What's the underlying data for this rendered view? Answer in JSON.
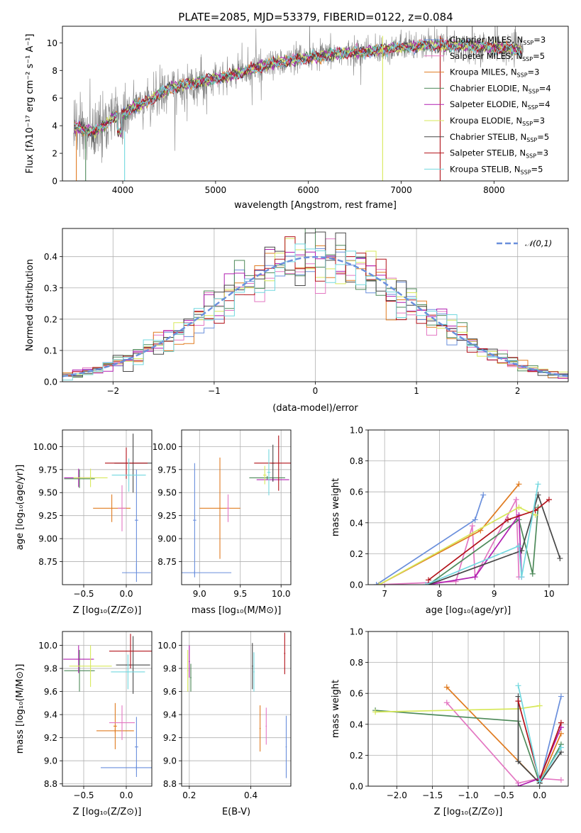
{
  "page": {
    "title": "PLATE=2085, MJD=53379, FIBERID=0122, z=0.084"
  },
  "palette": {
    "chabrier_miles": "#6a8fdc",
    "salpeter_miles": "#e377c2",
    "kroupa_miles": "#e07b20",
    "chabrier_elodie": "#4e8a5a",
    "salpeter_elodie": "#b11fb1",
    "kroupa_elodie": "#d7e85a",
    "chabrier_stelib": "#474747",
    "salpeter_stelib": "#b2121a",
    "kroupa_stelib": "#72d8df",
    "data": "#808080"
  },
  "legend": {
    "entries": [
      {
        "name": "Chabrier MILES",
        "nssp": "3",
        "color_key": "chabrier_miles"
      },
      {
        "name": "Salpeter MILES",
        "nssp": "5",
        "color_key": "salpeter_miles"
      },
      {
        "name": "Kroupa MILES",
        "nssp": "3",
        "color_key": "kroupa_miles"
      },
      {
        "name": "Chabrier ELODIE",
        "nssp": "4",
        "color_key": "chabrier_elodie"
      },
      {
        "name": "Salpeter ELODIE",
        "nssp": "4",
        "color_key": "salpeter_elodie"
      },
      {
        "name": "Kroupa ELODIE",
        "nssp": "3",
        "color_key": "kroupa_elodie"
      },
      {
        "name": "Chabrier STELIB",
        "nssp": "5",
        "color_key": "chabrier_stelib"
      },
      {
        "name": "Salpeter STELIB",
        "nssp": "3",
        "color_key": "salpeter_stelib"
      },
      {
        "name": "Kroupa STELIB",
        "nssp": "5",
        "color_key": "kroupa_stelib"
      }
    ]
  },
  "chart_data": [
    {
      "id": "spectrum",
      "type": "line",
      "title": "PLATE=2085, MJD=53379, FIBERID=0122, z=0.084",
      "xlabel": "wavelength [Angstrom, rest frame]",
      "ylabel": "Flux [fλ10⁻¹⁷ erg cm⁻² s⁻¹ A⁻¹]",
      "xlim": [
        3350,
        8800
      ],
      "ylim": [
        0,
        11.2
      ],
      "xticks": [
        4000,
        5000,
        6000,
        7000,
        8000
      ],
      "yticks": [
        0,
        2,
        4,
        6,
        8,
        10
      ],
      "legend_position": "right",
      "model_continuum": {
        "x": [
          3500,
          3600,
          3700,
          3800,
          3900,
          4000,
          4100,
          4200,
          4300,
          4400,
          4500,
          4700,
          4900,
          5100,
          5300,
          5500,
          5700,
          5900,
          6100,
          6300,
          6500,
          6700,
          6900,
          7100,
          7300,
          7500,
          7700,
          7900,
          8100,
          8300
        ],
        "y": [
          3.9,
          3.7,
          3.6,
          4.0,
          4.6,
          4.8,
          5.3,
          5.5,
          5.9,
          6.3,
          6.7,
          7.0,
          7.3,
          7.5,
          7.9,
          8.3,
          8.6,
          8.8,
          9.0,
          9.2,
          9.3,
          9.4,
          9.6,
          9.7,
          9.8,
          9.8,
          9.8,
          9.7,
          9.6,
          9.5
        ]
      }
    },
    {
      "id": "residuals",
      "type": "histogram",
      "xlabel": "(data-model)/error",
      "ylabel": "Normed distribution",
      "xlim": [
        -2.5,
        2.5
      ],
      "ylim": [
        0,
        0.49
      ],
      "xticks": [
        -2,
        -1,
        0,
        1,
        2
      ],
      "yticks": [
        0.0,
        0.1,
        0.2,
        0.3,
        0.4
      ],
      "grid": true,
      "legend_position": "top-right",
      "reference_curve": "𝒩(0,1)"
    },
    {
      "id": "age_vs_z",
      "type": "scatter",
      "xlabel": "Z [log10(Z/Z⊙)]",
      "ylabel": "age [log10(age/yr)]",
      "xlim": [
        -0.75,
        0.3
      ],
      "ylim": [
        8.5,
        10.18
      ],
      "xticks": [
        -0.5,
        0.0
      ],
      "yticks": [
        8.75,
        9.0,
        9.25,
        9.5,
        9.75,
        10.0
      ],
      "grid": true,
      "points": [
        {
          "color_key": "chabrier_miles",
          "x": 0.12,
          "xerr": 0.17,
          "y": 8.63,
          "yerr": 0.1
        },
        {
          "color_key": "chabrier_miles",
          "x": 0.12,
          "xerr": 0.02,
          "y": 9.2,
          "yerr": 0.55
        },
        {
          "color_key": "kroupa_miles",
          "x": -0.17,
          "xerr": 0.22,
          "y": 9.33,
          "yerr": 0.15
        },
        {
          "color_key": "salpeter_miles",
          "x": -0.05,
          "xerr": 0.05,
          "y": 9.33,
          "yerr": 0.25
        },
        {
          "color_key": "chabrier_elodie",
          "x": -0.55,
          "xerr": 0.18,
          "y": 9.65,
          "yerr": 0.1
        },
        {
          "color_key": "salpeter_elodie",
          "x": -0.56,
          "xerr": 0.17,
          "y": 9.66,
          "yerr": 0.1
        },
        {
          "color_key": "kroupa_elodie",
          "x": -0.42,
          "xerr": 0.2,
          "y": 9.66,
          "yerr": 0.1
        },
        {
          "color_key": "chabrier_stelib",
          "x": 0.08,
          "xerr": 0.22,
          "y": 9.82,
          "yerr": 0.32
        },
        {
          "color_key": "salpeter_stelib",
          "x": 0.0,
          "xerr": 0.25,
          "y": 9.82,
          "yerr": 0.17
        },
        {
          "color_key": "kroupa_stelib",
          "x": 0.03,
          "xerr": 0.2,
          "y": 9.69,
          "yerr": 0.18
        }
      ]
    },
    {
      "id": "age_vs_mass",
      "type": "scatter",
      "xlabel": "mass [log10(M/M⊙)]",
      "ylabel": "",
      "xlim": [
        8.78,
        10.12
      ],
      "ylim": [
        8.5,
        10.18
      ],
      "xticks": [
        9.0,
        9.5,
        10.0
      ],
      "yticks": [
        8.75,
        9.0,
        9.25,
        9.5,
        9.75,
        10.0
      ],
      "grid": true,
      "points": [
        {
          "color_key": "chabrier_miles",
          "x": 8.94,
          "xerr": 0.45,
          "y": 8.63,
          "yerr": 0.02
        },
        {
          "color_key": "chabrier_miles",
          "x": 8.94,
          "xerr": 0.02,
          "y": 9.2,
          "yerr": 0.62
        },
        {
          "color_key": "kroupa_miles",
          "x": 9.25,
          "xerr": 0.25,
          "y": 9.33,
          "yerr": 0.55
        },
        {
          "color_key": "salpeter_miles",
          "x": 9.35,
          "xerr": 0.02,
          "y": 9.33,
          "yerr": 0.15
        },
        {
          "color_key": "chabrier_elodie",
          "x": 9.83,
          "xerr": 0.22,
          "y": 9.66,
          "yerr": 0.02
        },
        {
          "color_key": "salpeter_elodie",
          "x": 9.9,
          "xerr": 0.2,
          "y": 9.64,
          "yerr": 0.02
        },
        {
          "color_key": "kroupa_elodie",
          "x": 9.8,
          "xerr": 0.02,
          "y": 9.69,
          "yerr": 0.1
        },
        {
          "color_key": "chabrier_stelib",
          "x": 9.9,
          "xerr": 0.02,
          "y": 9.82,
          "yerr": 0.2
        },
        {
          "color_key": "salpeter_stelib",
          "x": 9.97,
          "xerr": 0.3,
          "y": 9.82,
          "yerr": 0.3
        },
        {
          "color_key": "kroupa_stelib",
          "x": 9.85,
          "xerr": 0.02,
          "y": 9.72,
          "yerr": 0.25
        }
      ]
    },
    {
      "id": "weight_vs_age",
      "type": "line",
      "xlabel": "age [log10(age/yr)]",
      "ylabel": "mass weight",
      "xlim": [
        6.7,
        10.35
      ],
      "ylim": [
        0,
        1.0
      ],
      "xticks": [
        7,
        8,
        9,
        10
      ],
      "yticks": [
        0.0,
        0.2,
        0.4,
        0.6,
        0.8,
        1.0
      ],
      "grid": true,
      "series": [
        {
          "color_key": "chabrier_miles",
          "x": [
            6.85,
            8.65,
            8.8
          ],
          "y": [
            0.0,
            0.42,
            0.58
          ]
        },
        {
          "color_key": "salpeter_miles",
          "x": [
            6.9,
            8.3,
            8.6,
            8.65,
            9.4,
            9.45
          ],
          "y": [
            0.0,
            0.02,
            0.38,
            0.05,
            0.55,
            0.05
          ]
        },
        {
          "color_key": "kroupa_miles",
          "x": [
            6.9,
            8.75,
            9.45
          ],
          "y": [
            0.0,
            0.35,
            0.65
          ]
        },
        {
          "color_key": "chabrier_elodie",
          "x": [
            7.8,
            9.45,
            9.7,
            9.8
          ],
          "y": [
            0.0,
            0.42,
            0.07,
            0.5
          ]
        },
        {
          "color_key": "salpeter_elodie",
          "x": [
            7.8,
            8.65,
            9.45,
            9.5
          ],
          "y": [
            0.0,
            0.05,
            0.45,
            0.05
          ]
        },
        {
          "color_key": "kroupa_elodie",
          "x": [
            6.9,
            9.45,
            9.75
          ],
          "y": [
            0.0,
            0.5,
            0.45
          ]
        },
        {
          "color_key": "chabrier_stelib",
          "x": [
            7.8,
            9.5,
            9.8,
            10.2
          ],
          "y": [
            0.0,
            0.22,
            0.58,
            0.17
          ]
        },
        {
          "color_key": "salpeter_stelib",
          "x": [
            7.8,
            9.25,
            9.75,
            10.0
          ],
          "y": [
            0.03,
            0.42,
            0.48,
            0.55
          ]
        },
        {
          "color_key": "kroupa_stelib",
          "x": [
            7.75,
            9.45,
            9.5,
            9.8
          ],
          "y": [
            0.0,
            0.25,
            0.05,
            0.65
          ]
        }
      ]
    },
    {
      "id": "mass_vs_z",
      "type": "scatter",
      "xlabel": "Z [log10(Z/Z⊙)]",
      "ylabel": "mass [log10(M/M⊙)]",
      "xlim": [
        -0.75,
        0.3
      ],
      "ylim": [
        8.78,
        10.12
      ],
      "xticks": [
        -0.5,
        0.0
      ],
      "yticks": [
        8.8,
        9.0,
        9.2,
        9.4,
        9.6,
        9.8,
        10.0
      ],
      "grid": true,
      "points": [
        {
          "color_key": "chabrier_miles",
          "x": 0.12,
          "xerr": 0.42,
          "y": 8.94,
          "yerr": 0.02
        },
        {
          "color_key": "chabrier_miles",
          "x": 0.12,
          "xerr": 0.02,
          "y": 9.12,
          "yerr": 0.26
        },
        {
          "color_key": "kroupa_miles",
          "x": -0.13,
          "xerr": 0.22,
          "y": 9.26,
          "yerr": 0.02
        },
        {
          "color_key": "kroupa_miles",
          "x": -0.13,
          "xerr": 0.02,
          "y": 9.3,
          "yerr": 0.2
        },
        {
          "color_key": "salpeter_miles",
          "x": -0.05,
          "xerr": 0.15,
          "y": 9.33,
          "yerr": 0.15
        },
        {
          "color_key": "chabrier_elodie",
          "x": -0.55,
          "xerr": 0.18,
          "y": 9.78,
          "yerr": 0.18
        },
        {
          "color_key": "salpeter_elodie",
          "x": -0.56,
          "xerr": 0.18,
          "y": 9.88,
          "yerr": 0.12
        },
        {
          "color_key": "kroupa_elodie",
          "x": -0.42,
          "xerr": 0.25,
          "y": 9.82,
          "yerr": 0.18
        },
        {
          "color_key": "chabrier_stelib",
          "x": 0.08,
          "xerr": 0.2,
          "y": 9.83,
          "yerr": 0.25
        },
        {
          "color_key": "salpeter_stelib",
          "x": 0.05,
          "xerr": 0.25,
          "y": 9.95,
          "yerr": 0.15
        },
        {
          "color_key": "kroupa_stelib",
          "x": 0.02,
          "xerr": 0.2,
          "y": 9.77,
          "yerr": 0.15
        }
      ]
    },
    {
      "id": "mass_vs_ebv",
      "type": "scatter",
      "xlabel": "E(B-V)",
      "ylabel": "",
      "xlim": [
        0.175,
        0.53
      ],
      "ylim": [
        8.78,
        10.12
      ],
      "xticks": [
        0.2,
        0.4
      ],
      "yticks": [
        8.8,
        9.0,
        9.2,
        9.4,
        9.6,
        9.8,
        10.0
      ],
      "grid": true,
      "points": [
        {
          "color_key": "salpeter_elodie",
          "x": 0.2,
          "xerr": 0.002,
          "y": 9.86,
          "yerr": 0.14
        },
        {
          "color_key": "kroupa_elodie",
          "x": 0.195,
          "xerr": 0.002,
          "y": 9.78,
          "yerr": 0.18
        },
        {
          "color_key": "chabrier_elodie",
          "x": 0.205,
          "xerr": 0.002,
          "y": 9.72,
          "yerr": 0.12
        },
        {
          "color_key": "chabrier_stelib",
          "x": 0.405,
          "xerr": 0.002,
          "y": 9.82,
          "yerr": 0.2
        },
        {
          "color_key": "kroupa_stelib",
          "x": 0.41,
          "xerr": 0.002,
          "y": 9.77,
          "yerr": 0.17
        },
        {
          "color_key": "kroupa_miles",
          "x": 0.43,
          "xerr": 0.002,
          "y": 9.28,
          "yerr": 0.2
        },
        {
          "color_key": "salpeter_miles",
          "x": 0.45,
          "xerr": 0.002,
          "y": 9.3,
          "yerr": 0.16
        },
        {
          "color_key": "salpeter_stelib",
          "x": 0.51,
          "xerr": 0.002,
          "y": 9.93,
          "yerr": 0.18
        },
        {
          "color_key": "chabrier_miles",
          "x": 0.515,
          "xerr": 0.002,
          "y": 9.12,
          "yerr": 0.27
        }
      ]
    },
    {
      "id": "weight_vs_z",
      "type": "line",
      "xlabel": "Z [log10(Z/Z⊙)]",
      "ylabel": "mass weight",
      "xlim": [
        -2.4,
        0.4
      ],
      "ylim": [
        0,
        1.0
      ],
      "xticks": [
        -2.0,
        -1.5,
        -1.0,
        -0.5,
        0.0
      ],
      "yticks": [
        0.0,
        0.2,
        0.4,
        0.6,
        0.8,
        1.0
      ],
      "grid": true,
      "series": [
        {
          "color_key": "chabrier_miles",
          "x": [
            0.0,
            0.3
          ],
          "y": [
            0.02,
            0.58
          ]
        },
        {
          "color_key": "salpeter_miles",
          "x": [
            -1.3,
            -0.3,
            0.0,
            0.3
          ],
          "y": [
            0.54,
            0.02,
            0.05,
            0.04
          ]
        },
        {
          "color_key": "kroupa_miles",
          "x": [
            -1.3,
            0.0,
            0.3
          ],
          "y": [
            0.64,
            0.02,
            0.34
          ]
        },
        {
          "color_key": "chabrier_elodie",
          "x": [
            -2.3,
            -0.3,
            0.0,
            0.3
          ],
          "y": [
            0.49,
            0.42,
            0.02,
            0.27
          ]
        },
        {
          "color_key": "salpeter_elodie",
          "x": [
            -0.3,
            0.0,
            0.3
          ],
          "y": [
            0.0,
            0.05,
            0.38
          ]
        },
        {
          "color_key": "kroupa_elodie",
          "x": [
            -2.3,
            -0.3,
            0.0
          ],
          "y": [
            0.48,
            0.5,
            0.52
          ]
        },
        {
          "color_key": "chabrier_stelib",
          "x": [
            -0.3,
            -0.3,
            0.0,
            0.3
          ],
          "y": [
            0.58,
            0.16,
            0.02,
            0.22
          ]
        },
        {
          "color_key": "salpeter_stelib",
          "x": [
            -0.3,
            0.0,
            0.3
          ],
          "y": [
            0.55,
            0.04,
            0.41
          ]
        },
        {
          "color_key": "kroupa_stelib",
          "x": [
            -0.3,
            0.0,
            0.3
          ],
          "y": [
            0.65,
            0.03,
            0.25
          ]
        }
      ]
    }
  ]
}
